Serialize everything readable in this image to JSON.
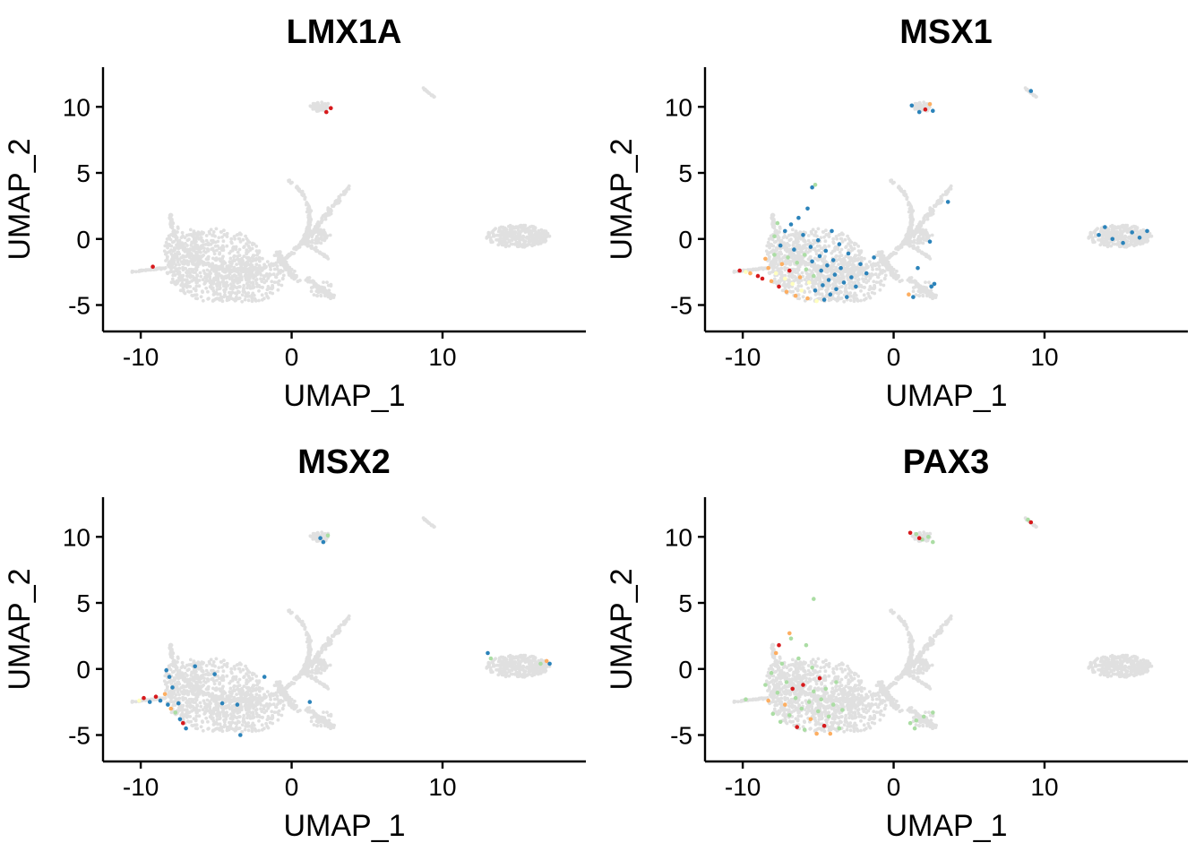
{
  "figure": {
    "colors": {
      "background_cells": "#E0E0E0",
      "expression_scale": [
        "#2B83BA",
        "#ABDDA4",
        "#FFFFBF",
        "#FDAE61",
        "#D7191C"
      ]
    }
  },
  "chart_data": [
    {
      "type": "scatter",
      "title": "LMX1A",
      "xlabel": "UMAP_1",
      "ylabel": "UMAP_2",
      "xlim": [
        -12.5,
        19.5
      ],
      "ylim": [
        -7,
        13
      ],
      "xticks": [
        -10,
        0,
        10
      ],
      "yticks": [
        -5,
        0,
        5,
        10
      ],
      "xtick_labels": [
        "-10",
        "0",
        "10"
      ],
      "ytick_labels": [
        "-5",
        "0",
        "5",
        "10"
      ],
      "grid": false,
      "expressing_points": [
        {
          "x": 2.6,
          "y": 9.9,
          "level": 4
        },
        {
          "x": 2.3,
          "y": 9.6,
          "level": 4
        },
        {
          "x": -9.2,
          "y": -2.1,
          "level": 4
        }
      ]
    },
    {
      "type": "scatter",
      "title": "MSX1",
      "xlabel": "UMAP_1",
      "ylabel": "UMAP_2",
      "xlim": [
        -12.5,
        19.5
      ],
      "ylim": [
        -7,
        13
      ],
      "xticks": [
        -10,
        0,
        10
      ],
      "yticks": [
        -5,
        0,
        5,
        10
      ],
      "xtick_labels": [
        "-10",
        "0",
        "10"
      ],
      "ytick_labels": [
        "-5",
        "0",
        "5",
        "10"
      ],
      "grid": false,
      "expressing_points": [
        {
          "x": -10.2,
          "y": -2.4,
          "level": 4
        },
        {
          "x": -9.8,
          "y": -2.5,
          "level": 2
        },
        {
          "x": -9.5,
          "y": -2.6,
          "level": 3
        },
        {
          "x": -9.0,
          "y": -2.8,
          "level": 4
        },
        {
          "x": -8.7,
          "y": -3.0,
          "level": 4
        },
        {
          "x": -8.5,
          "y": -1.5,
          "level": 3
        },
        {
          "x": -8.3,
          "y": -2.2,
          "level": 3
        },
        {
          "x": -8.1,
          "y": -3.2,
          "level": 3
        },
        {
          "x": -7.9,
          "y": -1.2,
          "level": 1
        },
        {
          "x": -7.8,
          "y": -2.6,
          "level": 2
        },
        {
          "x": -7.6,
          "y": -3.6,
          "level": 4
        },
        {
          "x": -7.5,
          "y": -0.5,
          "level": 0
        },
        {
          "x": -7.4,
          "y": -1.9,
          "level": 3
        },
        {
          "x": -7.2,
          "y": -3.0,
          "level": 2
        },
        {
          "x": -7.1,
          "y": -4.0,
          "level": 3
        },
        {
          "x": -7.0,
          "y": -1.4,
          "level": 1
        },
        {
          "x": -6.9,
          "y": -2.4,
          "level": 4
        },
        {
          "x": -6.7,
          "y": -3.4,
          "level": 2
        },
        {
          "x": -6.6,
          "y": -0.8,
          "level": 0
        },
        {
          "x": -6.5,
          "y": -4.3,
          "level": 3
        },
        {
          "x": -6.4,
          "y": -1.8,
          "level": 1
        },
        {
          "x": -6.2,
          "y": -2.9,
          "level": 3
        },
        {
          "x": -6.1,
          "y": -3.9,
          "level": 2
        },
        {
          "x": -6.0,
          "y": 0.3,
          "level": 0
        },
        {
          "x": -5.9,
          "y": -1.2,
          "level": 1
        },
        {
          "x": -5.8,
          "y": -2.3,
          "level": 1
        },
        {
          "x": -5.7,
          "y": -4.5,
          "level": 3
        },
        {
          "x": -5.6,
          "y": -3.3,
          "level": 2
        },
        {
          "x": -5.5,
          "y": -0.6,
          "level": 0
        },
        {
          "x": -5.4,
          "y": -1.7,
          "level": 0
        },
        {
          "x": -5.3,
          "y": -2.8,
          "level": 1
        },
        {
          "x": -5.2,
          "y": -3.9,
          "level": 0
        },
        {
          "x": -5.1,
          "y": -4.7,
          "level": 2
        },
        {
          "x": -5.0,
          "y": -0.1,
          "level": 0
        },
        {
          "x": -4.9,
          "y": -1.3,
          "level": 0
        },
        {
          "x": -4.8,
          "y": -2.4,
          "level": 0
        },
        {
          "x": -4.7,
          "y": -3.5,
          "level": 0
        },
        {
          "x": -4.6,
          "y": -4.6,
          "level": 0
        },
        {
          "x": -4.5,
          "y": -0.9,
          "level": 0
        },
        {
          "x": -4.4,
          "y": -2.0,
          "level": 0
        },
        {
          "x": -4.3,
          "y": -3.1,
          "level": 0
        },
        {
          "x": -4.2,
          "y": -4.2,
          "level": 0
        },
        {
          "x": -4.1,
          "y": 0.6,
          "level": 0
        },
        {
          "x": -4.0,
          "y": -1.6,
          "level": 0
        },
        {
          "x": -3.9,
          "y": -2.7,
          "level": 0
        },
        {
          "x": -3.8,
          "y": -3.8,
          "level": 0
        },
        {
          "x": -3.6,
          "y": -0.4,
          "level": 0
        },
        {
          "x": -3.5,
          "y": -2.2,
          "level": 0
        },
        {
          "x": -3.3,
          "y": -3.3,
          "level": 0
        },
        {
          "x": -3.1,
          "y": -4.4,
          "level": 0
        },
        {
          "x": -3.0,
          "y": -1.1,
          "level": 0
        },
        {
          "x": -2.8,
          "y": -2.9,
          "level": 0
        },
        {
          "x": -2.5,
          "y": -3.6,
          "level": 0
        },
        {
          "x": -2.2,
          "y": -1.9,
          "level": 0
        },
        {
          "x": -1.8,
          "y": -2.6,
          "level": 0
        },
        {
          "x": -1.3,
          "y": -1.4,
          "level": 0
        },
        {
          "x": -6.8,
          "y": 1.1,
          "level": 0
        },
        {
          "x": -7.2,
          "y": 0.6,
          "level": 0
        },
        {
          "x": -6.3,
          "y": 1.6,
          "level": 0
        },
        {
          "x": -5.7,
          "y": 2.3,
          "level": 0
        },
        {
          "x": -5.4,
          "y": 3.9,
          "level": 0
        },
        {
          "x": -5.2,
          "y": 4.1,
          "level": 1
        },
        {
          "x": -7.9,
          "y": 0.2,
          "level": 1
        },
        {
          "x": -7.7,
          "y": 1.2,
          "level": 1
        },
        {
          "x": 1.2,
          "y": 10.1,
          "level": 0
        },
        {
          "x": 1.7,
          "y": 9.6,
          "level": 0
        },
        {
          "x": 2.1,
          "y": 9.8,
          "level": 4
        },
        {
          "x": 2.4,
          "y": 10.2,
          "level": 3
        },
        {
          "x": 2.6,
          "y": 9.7,
          "level": 0
        },
        {
          "x": 9.1,
          "y": 11.2,
          "level": 0
        },
        {
          "x": 1.0,
          "y": -4.2,
          "level": 3
        },
        {
          "x": 1.3,
          "y": -4.4,
          "level": 0
        },
        {
          "x": 2.5,
          "y": -3.6,
          "level": 0
        },
        {
          "x": 2.7,
          "y": -3.4,
          "level": 0
        },
        {
          "x": 1.6,
          "y": -2.2,
          "level": 0
        },
        {
          "x": 3.6,
          "y": 2.8,
          "level": 0
        },
        {
          "x": 2.4,
          "y": -0.2,
          "level": 0
        },
        {
          "x": 14.0,
          "y": 0.9,
          "level": 0
        },
        {
          "x": 14.5,
          "y": 0.0,
          "level": 0
        },
        {
          "x": 15.2,
          "y": -0.3,
          "level": 0
        },
        {
          "x": 15.8,
          "y": 0.5,
          "level": 0
        },
        {
          "x": 16.3,
          "y": 0.1,
          "level": 0
        },
        {
          "x": 16.8,
          "y": 0.6,
          "level": 0
        },
        {
          "x": 13.6,
          "y": 0.3,
          "level": 0
        }
      ]
    },
    {
      "type": "scatter",
      "title": "MSX2",
      "xlabel": "UMAP_1",
      "ylabel": "UMAP_2",
      "xlim": [
        -12.5,
        19.5
      ],
      "ylim": [
        -7,
        13
      ],
      "xticks": [
        -10,
        0,
        10
      ],
      "yticks": [
        -5,
        0,
        5,
        10
      ],
      "xtick_labels": [
        "-10",
        "0",
        "10"
      ],
      "ytick_labels": [
        "-5",
        "0",
        "5",
        "10"
      ],
      "grid": false,
      "expressing_points": [
        {
          "x": -10.1,
          "y": -2.4,
          "level": 2
        },
        {
          "x": -9.8,
          "y": -2.2,
          "level": 4
        },
        {
          "x": -9.4,
          "y": -2.5,
          "level": 0
        },
        {
          "x": -9.0,
          "y": -2.1,
          "level": 4
        },
        {
          "x": -8.7,
          "y": -2.4,
          "level": 0
        },
        {
          "x": -8.4,
          "y": -1.9,
          "level": 3
        },
        {
          "x": -8.2,
          "y": -2.7,
          "level": 0
        },
        {
          "x": -8.0,
          "y": -3.0,
          "level": 3
        },
        {
          "x": -7.9,
          "y": -1.4,
          "level": 0
        },
        {
          "x": -7.7,
          "y": -3.3,
          "level": 1
        },
        {
          "x": -7.5,
          "y": -2.6,
          "level": 0
        },
        {
          "x": -7.4,
          "y": -3.8,
          "level": 0
        },
        {
          "x": -7.2,
          "y": -4.1,
          "level": 4
        },
        {
          "x": -7.0,
          "y": -4.5,
          "level": 0
        },
        {
          "x": -8.1,
          "y": -0.6,
          "level": 0
        },
        {
          "x": -8.3,
          "y": -0.1,
          "level": 0
        },
        {
          "x": -6.4,
          "y": 0.2,
          "level": 0
        },
        {
          "x": -5.1,
          "y": -0.4,
          "level": 0
        },
        {
          "x": -4.6,
          "y": -2.6,
          "level": 0
        },
        {
          "x": -3.6,
          "y": -2.7,
          "level": 0
        },
        {
          "x": -3.4,
          "y": -5.0,
          "level": 0
        },
        {
          "x": -1.8,
          "y": -0.6,
          "level": 0
        },
        {
          "x": 1.2,
          "y": -2.5,
          "level": 0
        },
        {
          "x": 1.9,
          "y": 9.9,
          "level": 0
        },
        {
          "x": 2.1,
          "y": 9.6,
          "level": 0
        },
        {
          "x": 2.4,
          "y": 10.1,
          "level": 1
        },
        {
          "x": 13.0,
          "y": 1.2,
          "level": 0
        },
        {
          "x": 13.2,
          "y": 0.8,
          "level": 1
        },
        {
          "x": 16.5,
          "y": 0.4,
          "level": 1
        },
        {
          "x": 16.9,
          "y": 0.6,
          "level": 3
        },
        {
          "x": 17.1,
          "y": 0.4,
          "level": 0
        }
      ]
    },
    {
      "type": "scatter",
      "title": "PAX3",
      "xlabel": "UMAP_1",
      "ylabel": "UMAP_2",
      "xlim": [
        -12.5,
        19.5
      ],
      "ylim": [
        -7,
        13
      ],
      "xticks": [
        -10,
        0,
        10
      ],
      "yticks": [
        -5,
        0,
        5,
        10
      ],
      "xtick_labels": [
        "-10",
        "0",
        "10"
      ],
      "ytick_labels": [
        "-5",
        "0",
        "5",
        "10"
      ],
      "grid": false,
      "expressing_points": [
        {
          "x": -9.8,
          "y": -2.3,
          "level": 1
        },
        {
          "x": -8.5,
          "y": -1.2,
          "level": 1
        },
        {
          "x": -8.3,
          "y": -2.4,
          "level": 3
        },
        {
          "x": -8.1,
          "y": -0.3,
          "level": 1
        },
        {
          "x": -8.0,
          "y": -3.4,
          "level": 1
        },
        {
          "x": -7.8,
          "y": 1.2,
          "level": 3
        },
        {
          "x": -7.7,
          "y": -1.8,
          "level": 1
        },
        {
          "x": -7.5,
          "y": -4.0,
          "level": 1
        },
        {
          "x": -7.4,
          "y": 0.4,
          "level": 1
        },
        {
          "x": -7.2,
          "y": -2.7,
          "level": 3
        },
        {
          "x": -7.1,
          "y": -1.0,
          "level": 1
        },
        {
          "x": -6.9,
          "y": -3.5,
          "level": 1
        },
        {
          "x": -6.8,
          "y": 2.3,
          "level": 1
        },
        {
          "x": -6.7,
          "y": -1.5,
          "level": 4
        },
        {
          "x": -6.5,
          "y": -2.2,
          "level": 1
        },
        {
          "x": -6.4,
          "y": -4.4,
          "level": 4
        },
        {
          "x": -6.3,
          "y": 0.8,
          "level": 1
        },
        {
          "x": -6.1,
          "y": -3.0,
          "level": 1
        },
        {
          "x": -6.0,
          "y": -1.2,
          "level": 4
        },
        {
          "x": -5.9,
          "y": -4.6,
          "level": 1
        },
        {
          "x": -5.8,
          "y": 1.8,
          "level": 1
        },
        {
          "x": -5.6,
          "y": -2.5,
          "level": 1
        },
        {
          "x": -5.5,
          "y": -3.8,
          "level": 3
        },
        {
          "x": -5.4,
          "y": 0.1,
          "level": 1
        },
        {
          "x": -5.3,
          "y": -1.7,
          "level": 1
        },
        {
          "x": -5.1,
          "y": -4.9,
          "level": 3
        },
        {
          "x": -5.0,
          "y": -3.2,
          "level": 1
        },
        {
          "x": -4.9,
          "y": -0.7,
          "level": 4
        },
        {
          "x": -4.8,
          "y": -2.3,
          "level": 1
        },
        {
          "x": -4.6,
          "y": -4.3,
          "level": 4
        },
        {
          "x": -4.5,
          "y": -1.5,
          "level": 1
        },
        {
          "x": -4.3,
          "y": -3.6,
          "level": 1
        },
        {
          "x": -4.2,
          "y": -4.9,
          "level": 3
        },
        {
          "x": -4.0,
          "y": -2.7,
          "level": 1
        },
        {
          "x": -3.8,
          "y": -1.0,
          "level": 1
        },
        {
          "x": -3.6,
          "y": -4.5,
          "level": 1
        },
        {
          "x": -3.4,
          "y": -3.1,
          "level": 1
        },
        {
          "x": -6.9,
          "y": 2.7,
          "level": 3
        },
        {
          "x": -5.3,
          "y": 5.3,
          "level": 1
        },
        {
          "x": -7.6,
          "y": 1.8,
          "level": 4
        },
        {
          "x": 1.1,
          "y": 10.3,
          "level": 4
        },
        {
          "x": 1.5,
          "y": 10.2,
          "level": 1
        },
        {
          "x": 1.9,
          "y": 9.8,
          "level": 1
        },
        {
          "x": 2.3,
          "y": 10.0,
          "level": 1
        },
        {
          "x": 2.6,
          "y": 9.6,
          "level": 1
        },
        {
          "x": 1.7,
          "y": 9.9,
          "level": 4
        },
        {
          "x": 9.1,
          "y": 11.1,
          "level": 4
        },
        {
          "x": 8.9,
          "y": 11.3,
          "level": 1
        },
        {
          "x": 1.1,
          "y": -4.1,
          "level": 1
        },
        {
          "x": 1.5,
          "y": -3.9,
          "level": 1
        },
        {
          "x": 2.0,
          "y": -3.6,
          "level": 1
        },
        {
          "x": 2.6,
          "y": -3.3,
          "level": 1
        },
        {
          "x": 1.4,
          "y": -4.5,
          "level": 1
        }
      ]
    }
  ]
}
